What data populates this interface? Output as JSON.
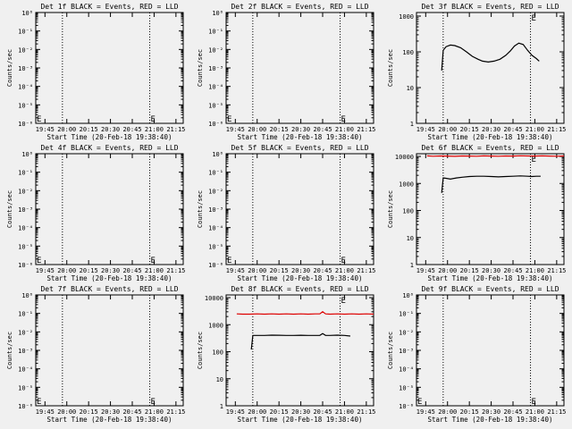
{
  "figure": {
    "background": "#f0f0f0",
    "axis_color": "#000000",
    "black_color": "#000000",
    "red_color": "#dd0000"
  },
  "chart_data": [
    {
      "type": "line",
      "title": "Det 1f BLACK = Events, RED = LLD",
      "xlabel": "Start Time (20-Feb-18 19:38:40)",
      "ylabel": "Counts/sec",
      "x_ticks": [
        "19:45",
        "20:00",
        "20:15",
        "20:30",
        "20:45",
        "21:00",
        "21:15"
      ],
      "y_ticks": [
        "10^0",
        "10^-1",
        "10^-2",
        "10^-3",
        "10^-4",
        "10^-5",
        "10^-6"
      ],
      "y_scale": "log",
      "ylim_exp": [
        -6,
        0
      ],
      "vlines": [
        "19:57",
        "20:57"
      ],
      "series": []
    },
    {
      "type": "line",
      "title": "Det 2f BLACK = Events, RED = LLD",
      "xlabel": "Start Time (20-Feb-18 19:38:40)",
      "ylabel": "Counts/sec",
      "x_ticks": [
        "19:45",
        "20:00",
        "20:15",
        "20:30",
        "20:45",
        "21:00",
        "21:15"
      ],
      "y_ticks": [
        "10^0",
        "10^-1",
        "10^-2",
        "10^-3",
        "10^-4",
        "10^-5",
        "10^-6"
      ],
      "y_scale": "log",
      "ylim_exp": [
        -6,
        0
      ],
      "vlines": [
        "19:57",
        "20:57"
      ],
      "series": []
    },
    {
      "type": "line",
      "title": "Det 3f BLACK = Events, RED = LLD",
      "xlabel": "Start Time (20-Feb-18 19:38:40)",
      "ylabel": "Counts/sec",
      "x_ticks": [
        "19:45",
        "20:00",
        "20:15",
        "20:30",
        "20:45",
        "21:00",
        "21:15"
      ],
      "y_ticks": [
        "1",
        "10",
        "100",
        "1000"
      ],
      "y_scale": "log",
      "ylim_exp": [
        0,
        3.1
      ],
      "vlines": [
        "19:57",
        "20:57"
      ],
      "series": [
        {
          "color": "black",
          "x": [
            "19:56",
            "19:57",
            "19:59",
            "20:02",
            "20:05",
            "20:09",
            "20:13",
            "20:17",
            "20:21",
            "20:24",
            "20:28",
            "20:32",
            "20:36",
            "20:40",
            "20:43",
            "20:46",
            "20:49",
            "20:52",
            "20:55",
            "20:58",
            "21:01",
            "21:03"
          ],
          "y": [
            30,
            110,
            140,
            155,
            150,
            130,
            100,
            75,
            62,
            55,
            52,
            55,
            62,
            80,
            105,
            145,
            175,
            160,
            110,
            80,
            65,
            55
          ]
        }
      ]
    },
    {
      "type": "line",
      "title": "Det 4f BLACK = Events, RED = LLD",
      "xlabel": "Start Time (20-Feb-18 19:38:40)",
      "ylabel": "Counts/sec",
      "x_ticks": [
        "19:45",
        "20:00",
        "20:15",
        "20:30",
        "20:45",
        "21:00",
        "21:15"
      ],
      "y_ticks": [
        "10^0",
        "10^-1",
        "10^-2",
        "10^-3",
        "10^-4",
        "10^-5",
        "10^-6"
      ],
      "y_scale": "log",
      "ylim_exp": [
        -6,
        0
      ],
      "vlines": [
        "19:57",
        "20:57"
      ],
      "series": []
    },
    {
      "type": "line",
      "title": "Det 5f BLACK = Events, RED = LLD",
      "xlabel": "Start Time (20-Feb-18 19:38:40)",
      "ylabel": "Counts/sec",
      "x_ticks": [
        "19:45",
        "20:00",
        "20:15",
        "20:30",
        "20:45",
        "21:00",
        "21:15"
      ],
      "y_ticks": [
        "10^0",
        "10^-1",
        "10^-2",
        "10^-3",
        "10^-4",
        "10^-5",
        "10^-6"
      ],
      "y_scale": "log",
      "ylim_exp": [
        -6,
        0
      ],
      "vlines": [
        "19:57",
        "20:57"
      ],
      "series": []
    },
    {
      "type": "line",
      "title": "Det 6f BLACK = Events, RED = LLD",
      "xlabel": "Start Time (20-Feb-18 19:38:40)",
      "ylabel": "Counts/sec",
      "x_ticks": [
        "19:45",
        "20:00",
        "20:15",
        "20:30",
        "20:45",
        "21:00",
        "21:15"
      ],
      "y_ticks": [
        "1",
        "10",
        "100",
        "1000",
        "10000"
      ],
      "y_scale": "log",
      "ylim_exp": [
        0,
        4.1
      ],
      "vlines": [
        "19:57",
        "20:57"
      ],
      "series": [
        {
          "color": "red",
          "x": [
            "19:46",
            "19:50",
            "19:55",
            "20:00",
            "20:05",
            "20:10",
            "20:15",
            "20:20",
            "20:25",
            "20:30",
            "20:35",
            "20:40",
            "20:45",
            "20:50",
            "20:55",
            "21:00",
            "21:05",
            "21:10",
            "21:15",
            "21:20"
          ],
          "y": [
            10500,
            10200,
            10400,
            10300,
            10100,
            10400,
            10300,
            10200,
            10500,
            10300,
            10200,
            10400,
            10300,
            10600,
            10400,
            10300,
            10500,
            10300,
            10200,
            10400
          ]
        },
        {
          "color": "black",
          "x": [
            "19:56",
            "19:57",
            "19:59",
            "20:02",
            "20:06",
            "20:10",
            "20:15",
            "20:20",
            "20:25",
            "20:30",
            "20:35",
            "20:40",
            "20:45",
            "20:50",
            "20:55",
            "20:58",
            "21:01",
            "21:04"
          ],
          "y": [
            450,
            1600,
            1550,
            1450,
            1600,
            1700,
            1800,
            1850,
            1850,
            1800,
            1750,
            1800,
            1850,
            1900,
            1850,
            1800,
            1850,
            1850
          ]
        }
      ]
    },
    {
      "type": "line",
      "title": "Det 7f BLACK = Events, RED = LLD",
      "xlabel": "Start Time (20-Feb-18 19:38:40)",
      "ylabel": "Counts/sec",
      "x_ticks": [
        "19:45",
        "20:00",
        "20:15",
        "20:30",
        "20:45",
        "21:00",
        "21:15"
      ],
      "y_ticks": [
        "10^0",
        "10^-1",
        "10^-2",
        "10^-3",
        "10^-4",
        "10^-5",
        "10^-6"
      ],
      "y_scale": "log",
      "ylim_exp": [
        -6,
        0
      ],
      "vlines": [
        "19:57",
        "20:57"
      ],
      "series": []
    },
    {
      "type": "line",
      "title": "Det 8f BLACK = Events, RED = LLD",
      "xlabel": "Start Time (20-Feb-18 19:38:40)",
      "ylabel": "Counts/sec",
      "x_ticks": [
        "19:45",
        "20:00",
        "20:15",
        "20:30",
        "20:45",
        "21:00",
        "21:15"
      ],
      "y_ticks": [
        "1",
        "10",
        "100",
        "1000",
        "10000"
      ],
      "y_scale": "log",
      "ylim_exp": [
        0,
        4.1
      ],
      "vlines": [
        "19:57",
        "20:57"
      ],
      "series": [
        {
          "color": "red",
          "x": [
            "19:46",
            "19:50",
            "19:55",
            "20:00",
            "20:05",
            "20:10",
            "20:15",
            "20:20",
            "20:25",
            "20:30",
            "20:35",
            "20:40",
            "20:43",
            "20:45",
            "20:47",
            "20:50",
            "20:55",
            "21:00",
            "21:05",
            "21:10",
            "21:15",
            "21:20"
          ],
          "y": [
            2500,
            2450,
            2450,
            2500,
            2450,
            2500,
            2450,
            2500,
            2450,
            2500,
            2450,
            2500,
            2500,
            3000,
            2500,
            2450,
            2500,
            2450,
            2500,
            2450,
            2500,
            2450
          ]
        },
        {
          "color": "black",
          "x": [
            "19:56",
            "19:57",
            "20:00",
            "20:05",
            "20:10",
            "20:15",
            "20:20",
            "20:25",
            "20:30",
            "20:35",
            "20:40",
            "20:43",
            "20:45",
            "20:47",
            "20:50",
            "20:55",
            "21:00",
            "21:04"
          ],
          "y": [
            120,
            400,
            400,
            400,
            410,
            405,
            400,
            400,
            405,
            400,
            400,
            400,
            470,
            400,
            400,
            410,
            400,
            380
          ]
        }
      ]
    },
    {
      "type": "line",
      "title": "Det 9f BLACK = Events, RED = LLD",
      "xlabel": "Start Time (20-Feb-18 19:38:40)",
      "ylabel": "Counts/sec",
      "x_ticks": [
        "19:45",
        "20:00",
        "20:15",
        "20:30",
        "20:45",
        "21:00",
        "21:15"
      ],
      "y_ticks": [
        "10^0",
        "10^-1",
        "10^-2",
        "10^-3",
        "10^-4",
        "10^-5",
        "10^-6"
      ],
      "y_scale": "log",
      "ylim_exp": [
        -6,
        0
      ],
      "vlines": [
        "19:57",
        "20:57"
      ],
      "series": []
    }
  ]
}
